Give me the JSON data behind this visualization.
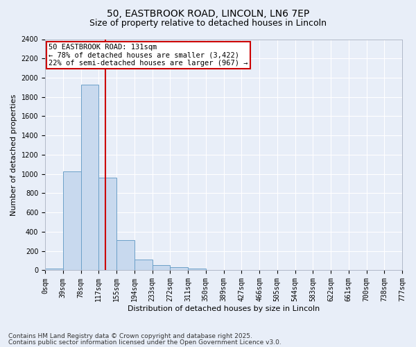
{
  "title_line1": "50, EASTBROOK ROAD, LINCOLN, LN6 7EP",
  "title_line2": "Size of property relative to detached houses in Lincoln",
  "xlabel": "Distribution of detached houses by size in Lincoln",
  "ylabel": "Number of detached properties",
  "bin_labels": [
    "0sqm",
    "39sqm",
    "78sqm",
    "117sqm",
    "155sqm",
    "194sqm",
    "233sqm",
    "272sqm",
    "311sqm",
    "350sqm",
    "389sqm",
    "427sqm",
    "466sqm",
    "505sqm",
    "544sqm",
    "583sqm",
    "622sqm",
    "661sqm",
    "700sqm",
    "738sqm",
    "777sqm"
  ],
  "bar_heights": [
    20,
    1030,
    1930,
    960,
    310,
    115,
    55,
    30,
    20,
    5,
    3,
    0,
    0,
    0,
    0,
    0,
    0,
    0,
    0,
    0
  ],
  "bar_color": "#c8d9ee",
  "bar_edge_color": "#6ca0c8",
  "vline_color": "#cc0000",
  "annotation_text": "50 EASTBROOK ROAD: 131sqm\n← 78% of detached houses are smaller (3,422)\n22% of semi-detached houses are larger (967) →",
  "annotation_box_color": "#ffffff",
  "annotation_box_edge_color": "#cc0000",
  "ylim": [
    0,
    2400
  ],
  "yticks": [
    0,
    200,
    400,
    600,
    800,
    1000,
    1200,
    1400,
    1600,
    1800,
    2000,
    2200,
    2400
  ],
  "background_color": "#e8eef8",
  "plot_background": "#e8eef8",
  "footer_line1": "Contains HM Land Registry data © Crown copyright and database right 2025.",
  "footer_line2": "Contains public sector information licensed under the Open Government Licence v3.0.",
  "title_fontsize": 10,
  "subtitle_fontsize": 9,
  "axis_label_fontsize": 8,
  "tick_fontsize": 7,
  "annotation_fontsize": 7.5,
  "footer_fontsize": 6.5
}
